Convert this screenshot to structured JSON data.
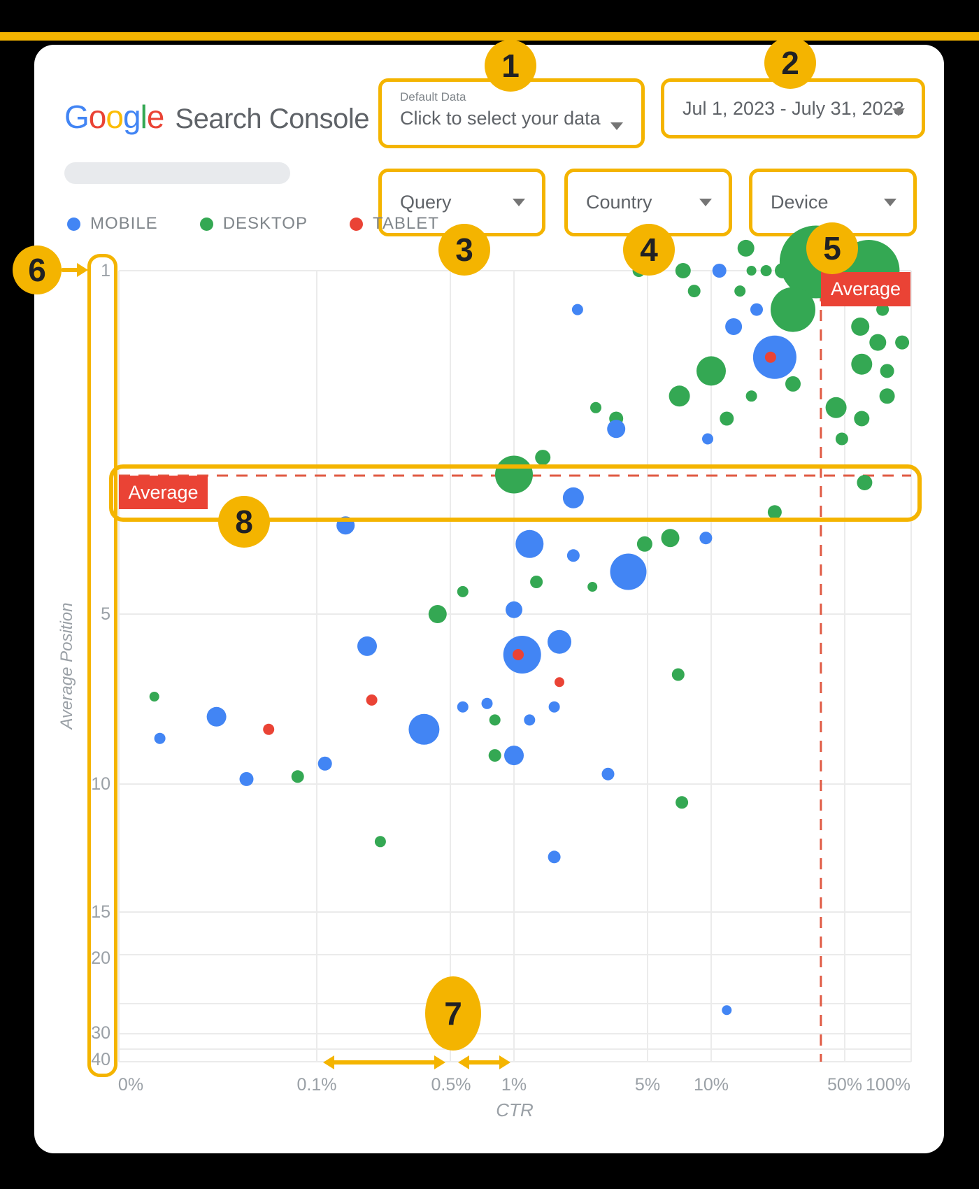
{
  "header": {
    "brand_letters": [
      {
        "ch": "G",
        "color": "#4285F4"
      },
      {
        "ch": "o",
        "color": "#EA4335"
      },
      {
        "ch": "o",
        "color": "#FBBC05"
      },
      {
        "ch": "g",
        "color": "#4285F4"
      },
      {
        "ch": "l",
        "color": "#34A853"
      },
      {
        "ch": "e",
        "color": "#EA4335"
      }
    ],
    "brand_suffix": "Search Console",
    "data_selector": {
      "label": "Default Data",
      "value": "Click to select your data"
    },
    "date_range": {
      "value": "Jul 1, 2023 - July 31, 2023"
    },
    "filters": [
      {
        "label": "Query"
      },
      {
        "label": "Country"
      },
      {
        "label": "Device"
      }
    ]
  },
  "legend": {
    "items": [
      {
        "label": "MOBILE",
        "color": "#4285F4"
      },
      {
        "label": "DESKTOP",
        "color": "#34A853"
      },
      {
        "label": "TABLET",
        "color": "#EA4335"
      }
    ]
  },
  "callouts": [
    "1",
    "2",
    "3",
    "4",
    "5",
    "6",
    "7",
    "8"
  ],
  "average_label": "Average",
  "colors": {
    "annotation_yellow": "#F4B400",
    "badge_red": "#EA4335",
    "average_line": "#E05A43",
    "grid": "#EBEBEB",
    "axis_text": "#9AA0A6",
    "mobile": "#4285F4",
    "desktop": "#34A853",
    "tablet": "#EA4335"
  },
  "chart_data": {
    "type": "scatter",
    "xlabel": "CTR",
    "ylabel": "Average Position",
    "x_scale": "log",
    "y_scale": "log-inverted",
    "x_ticks": [
      "0%",
      "0.1%",
      "0.5%",
      "1%",
      "5%",
      "10%",
      "50%",
      "100%"
    ],
    "y_ticks": [
      "1",
      "5",
      "10",
      "15",
      "20",
      "30",
      "40"
    ],
    "average_ctr_pct": 36,
    "average_position": 2.6,
    "series": [
      {
        "name": "MOBILE",
        "color": "#4285F4",
        "points": [
          [
            5.5,
            0.93,
            10
          ],
          [
            11,
            1,
            10
          ],
          [
            2.1,
            1.2,
            8
          ],
          [
            17,
            1.2,
            9
          ],
          [
            13,
            1.3,
            12
          ],
          [
            21,
            1.5,
            31
          ],
          [
            3.3,
            2.1,
            13
          ],
          [
            9.6,
            2.2,
            8
          ],
          [
            2,
            2.9,
            15
          ],
          [
            0.14,
            3.3,
            13
          ],
          [
            1.2,
            3.6,
            20
          ],
          [
            2,
            3.8,
            9
          ],
          [
            3.8,
            4.1,
            26
          ],
          [
            9.4,
            3.5,
            9
          ],
          [
            0.18,
            5.7,
            14
          ],
          [
            1,
            4.9,
            12
          ],
          [
            1.7,
            5.6,
            17
          ],
          [
            1.1,
            5.9,
            27
          ],
          [
            0.031,
            7.6,
            14
          ],
          [
            0.016,
            8.3,
            8
          ],
          [
            0.044,
            9.8,
            10
          ],
          [
            0.11,
            9.2,
            10
          ],
          [
            0.35,
            8,
            22
          ],
          [
            0.55,
            7.3,
            8
          ],
          [
            0.73,
            7.2,
            8
          ],
          [
            1.2,
            7.7,
            8
          ],
          [
            1.6,
            7.3,
            8
          ],
          [
            1,
            8.9,
            14
          ],
          [
            3,
            9.6,
            9
          ],
          [
            1.6,
            12.6,
            9
          ],
          [
            12,
            26,
            7
          ]
        ]
      },
      {
        "name": "DESKTOP",
        "color": "#34A853",
        "points": [
          [
            15,
            0.9,
            12
          ],
          [
            16,
            1,
            7
          ],
          [
            19,
            1,
            8
          ],
          [
            23,
            1,
            11
          ],
          [
            34,
            0.96,
            52
          ],
          [
            63,
            1,
            44
          ],
          [
            26,
            1.2,
            32
          ],
          [
            8.2,
            1.1,
            9
          ],
          [
            14,
            1.1,
            8
          ],
          [
            10,
            1.6,
            21
          ],
          [
            26,
            1.7,
            11
          ],
          [
            16,
            1.8,
            8
          ],
          [
            6.9,
            1.8,
            15
          ],
          [
            12,
            2,
            10
          ],
          [
            57,
            1.3,
            13
          ],
          [
            74,
            1.2,
            9
          ],
          [
            70,
            1.4,
            12
          ],
          [
            93,
            1.4,
            10
          ],
          [
            58,
            1.55,
            15
          ],
          [
            78,
            1.6,
            10
          ],
          [
            43,
            1.9,
            15
          ],
          [
            78,
            1.8,
            11
          ],
          [
            58,
            2,
            11
          ],
          [
            46,
            2.2,
            9
          ],
          [
            4.3,
            1,
            9
          ],
          [
            7.2,
            1,
            11
          ],
          [
            2.6,
            1.9,
            8
          ],
          [
            3.3,
            2,
            10
          ],
          [
            60,
            2.7,
            11
          ],
          [
            1,
            2.6,
            27
          ],
          [
            1.4,
            2.4,
            11
          ],
          [
            0.41,
            5,
            13
          ],
          [
            0.55,
            4.5,
            8
          ],
          [
            0.015,
            7,
            7
          ],
          [
            0.08,
            9.7,
            9
          ],
          [
            0.21,
            12,
            8
          ],
          [
            0.8,
            7.7,
            8
          ],
          [
            1.3,
            4.3,
            9
          ],
          [
            2.5,
            4.4,
            7
          ],
          [
            4.6,
            3.6,
            11
          ],
          [
            6.2,
            3.5,
            13
          ],
          [
            6.8,
            6.4,
            9
          ],
          [
            7.1,
            10.6,
            9
          ],
          [
            0.8,
            8.9,
            9
          ],
          [
            21,
            3.1,
            10
          ]
        ]
      },
      {
        "name": "TABLET",
        "color": "#EA4335",
        "points": [
          [
            20,
            1.5,
            8
          ],
          [
            1.05,
            5.9,
            8
          ],
          [
            0.19,
            7.1,
            8
          ],
          [
            0.057,
            8,
            8
          ],
          [
            1.7,
            6.6,
            7
          ]
        ]
      }
    ]
  }
}
